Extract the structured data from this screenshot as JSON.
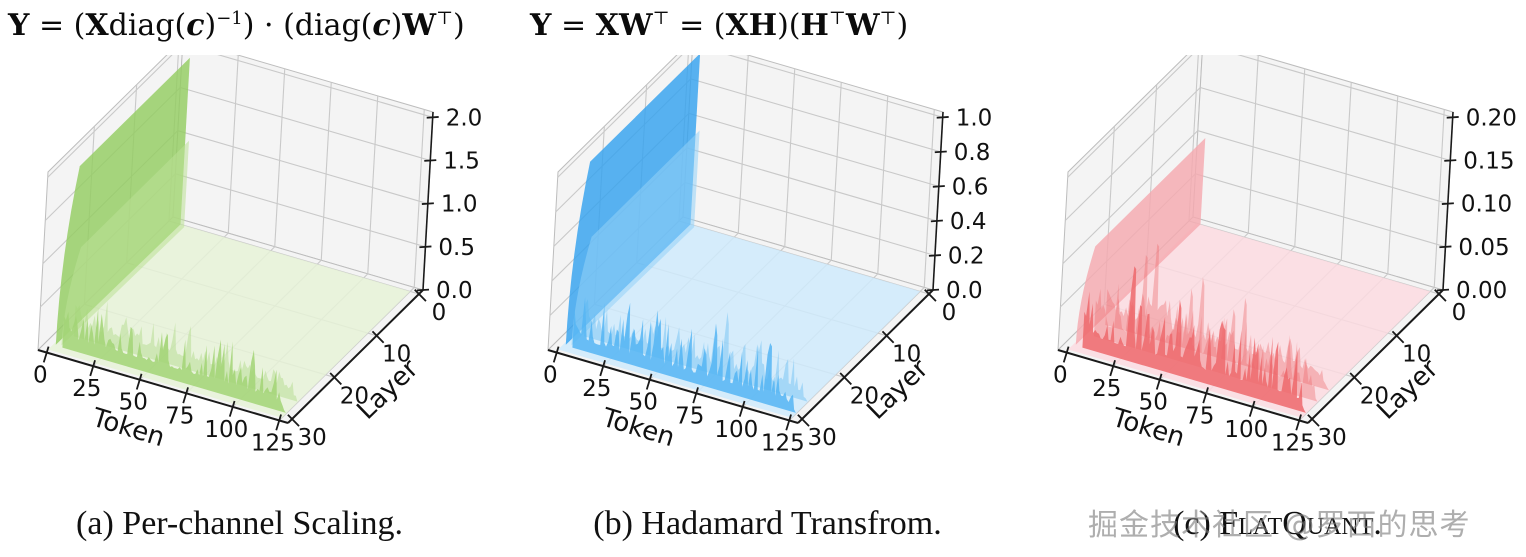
{
  "formulas": [
    {
      "name": "per-channel-scaling-equation",
      "runs": [
        {
          "t": "Y",
          "b": 1
        },
        {
          "t": " = ("
        },
        {
          "t": "X",
          "b": 1
        },
        {
          "t": "diag("
        },
        {
          "t": "c",
          "b": 1,
          "i": 1
        },
        {
          "t": ")"
        },
        {
          "t": "−1",
          "sup": 1
        },
        {
          "t": ") · (diag("
        },
        {
          "t": "c",
          "b": 1,
          "i": 1
        },
        {
          "t": ")"
        },
        {
          "t": "W",
          "b": 1
        },
        {
          "t": "⊤",
          "sup": 1
        },
        {
          "t": ")"
        }
      ]
    },
    {
      "name": "hadamard-transform-equation",
      "runs": [
        {
          "t": "Y",
          "b": 1
        },
        {
          "t": " = "
        },
        {
          "t": "XW",
          "b": 1
        },
        {
          "t": "⊤",
          "sup": 1
        },
        {
          "t": " = ("
        },
        {
          "t": "XH",
          "b": 1
        },
        {
          "t": ")("
        },
        {
          "t": "H",
          "b": 1
        },
        {
          "t": "⊤",
          "sup": 1
        },
        {
          "t": "W",
          "b": 1
        },
        {
          "t": "⊤",
          "sup": 1
        },
        {
          "t": ")"
        }
      ]
    }
  ],
  "watermark": "掘金技术社区 @罗西的思考",
  "chart_data": [
    {
      "type": "surface",
      "caption": "(a) Per-channel Scaling.",
      "xlabel": "Token",
      "x_ticks": [
        0,
        25,
        50,
        75,
        100,
        125
      ],
      "xlim": [
        0,
        130
      ],
      "ylabel": "Layer",
      "y_ticks": [
        0,
        10,
        20,
        30
      ],
      "ylim": [
        0,
        32
      ],
      "z_ticks": [
        "0.0",
        "0.5",
        "1.0",
        "1.5",
        "2.0"
      ],
      "zlim": [
        0,
        2.0
      ],
      "summary": "First token forms a wall of magnitude ~2.0 across all layers; remaining tokens fluctuate ~0.1-0.6 at the first layers and are near zero elsewhere.",
      "colors": {
        "wall": "#94cd62",
        "wall_front": "#bce095",
        "band": "#a2d476",
        "floor": "#e6f2d7"
      },
      "wall": {
        "token": 0,
        "top_z": 1.93,
        "front_z": 1.0
      },
      "noise": {
        "base_z": 0.14,
        "peak_z": 0.5,
        "seed": 11,
        "bands": 2
      },
      "spikes": []
    },
    {
      "type": "surface",
      "caption": "(b) Hadamard Transfrom.",
      "xlabel": "Token",
      "x_ticks": [
        0,
        25,
        50,
        75,
        100,
        125
      ],
      "xlim": [
        0,
        130
      ],
      "ylabel": "Layer",
      "y_ticks": [
        0,
        10,
        20,
        30
      ],
      "ylim": [
        0,
        32
      ],
      "z_ticks": [
        "0.0",
        "0.2",
        "0.4",
        "0.6",
        "0.8",
        "1.0"
      ],
      "zlim": [
        0,
        1.0
      ],
      "summary": "First token still forms a wall reaching ~1.0 across all layers; other tokens fluctuate ~0.05-0.35 with an isolated spike near token 80.",
      "colors": {
        "wall": "#35a2ef",
        "wall_front": "#93d2f7",
        "band": "#55b5f3",
        "floor": "#cfeafc"
      },
      "wall": {
        "token": 0,
        "top_z": 0.99,
        "front_z": 0.56
      },
      "noise": {
        "base_z": 0.06,
        "peak_z": 0.3,
        "seed": 23,
        "bands": 2
      },
      "spikes": [
        {
          "token": 80,
          "z": 0.4
        }
      ]
    },
    {
      "type": "surface",
      "caption": "(c) FlatQuant.",
      "caption_prefix": "(c) F",
      "caption_smallcaps": "latQuant.",
      "xlabel": "Token",
      "x_ticks": [
        0,
        25,
        50,
        75,
        100,
        125
      ],
      "xlim": [
        0,
        130
      ],
      "ylabel": "Layer",
      "y_ticks": [
        0,
        10,
        20,
        30
      ],
      "ylim": [
        0,
        32
      ],
      "z_ticks": [
        "0.00",
        "0.05",
        "0.10",
        "0.15",
        "0.20"
      ],
      "zlim": [
        0,
        0.2
      ],
      "summary": "Flattened landscape: a narrow spike ~0.2 at the first token, a low ~0.1 residual wall, other tokens ~0.02-0.1 at early layers, near zero elsewhere.",
      "colors": {
        "wall": "#f5a9b0",
        "wall_front": "",
        "band": "#ed686c",
        "floor": "#fbdbe0"
      },
      "wall": {
        "token": 0,
        "top_z": 0.1,
        "front_z": 0
      },
      "noise": {
        "base_z": 0.016,
        "peak_z": 0.07,
        "seed": 5,
        "bands": 3
      },
      "spikes": [
        {
          "token": 2,
          "z": 0.2
        },
        {
          "token": 30,
          "z": 0.125
        },
        {
          "token": 55,
          "z": 0.095
        },
        {
          "token": 78,
          "z": 0.085
        }
      ]
    }
  ]
}
